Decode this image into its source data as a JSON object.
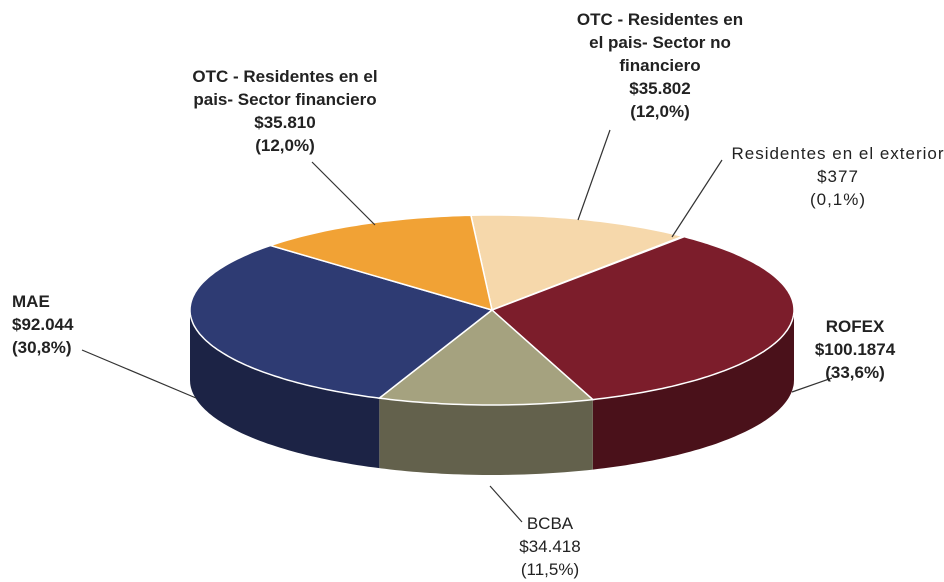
{
  "chart_data": {
    "type": "pie",
    "categories": [
      "OTC - Residentes en el pais- Sector no financiero",
      "Residentes en el exterior",
      "ROFEX",
      "BCBA",
      "MAE",
      "OTC - Residentes en el pais- Sector financiero"
    ],
    "amount_labels": [
      "$35.802",
      "$377",
      "$100.1874",
      "$34.418",
      "$92.044",
      "$35.810"
    ],
    "values": [
      12.0,
      0.1,
      33.6,
      11.5,
      30.8,
      12.0
    ],
    "value_labels": [
      "(12,0%)",
      "(0,1%)",
      "(33,6%)",
      "(11,5%)",
      "(30,8%)",
      "(12,0%)"
    ],
    "colors": [
      "#f6d8ab",
      "#f3c9a0",
      "#7c1d2b",
      "#a5a27f",
      "#2e3b73",
      "#f1a235"
    ]
  }
}
